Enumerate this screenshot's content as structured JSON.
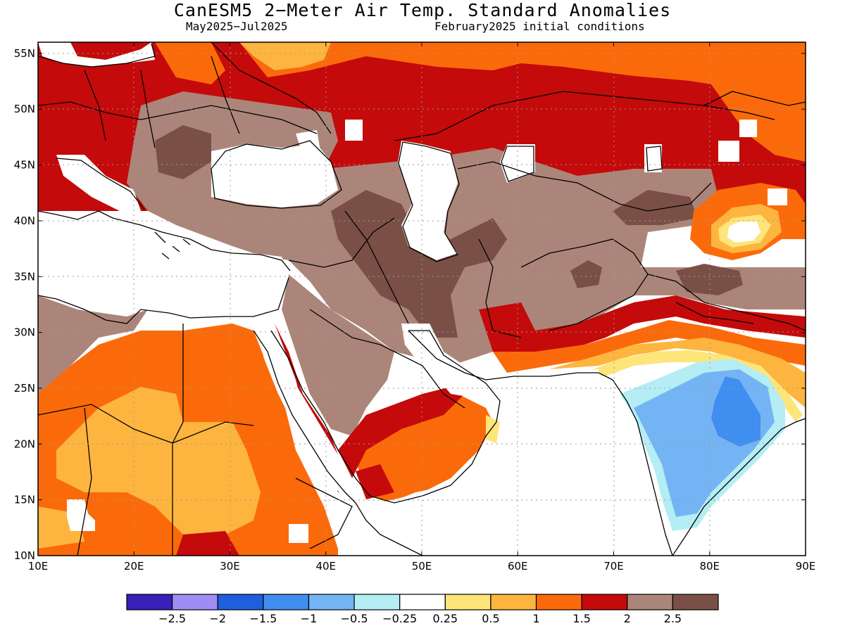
{
  "title": "CanESM5 2−Meter Air Temp. Standard Anomalies",
  "subtitle_left": "May2025−Jul2025",
  "subtitle_right": "February2025 initial conditions",
  "map": {
    "lon_range": [
      10,
      90
    ],
    "lat_range": [
      10,
      56
    ],
    "lat_ticks": [
      {
        "value": 10,
        "label": "10N"
      },
      {
        "value": 15,
        "label": "15N"
      },
      {
        "value": 20,
        "label": "20N"
      },
      {
        "value": 25,
        "label": "25N"
      },
      {
        "value": 30,
        "label": "30N"
      },
      {
        "value": 35,
        "label": "35N"
      },
      {
        "value": 40,
        "label": "40N"
      },
      {
        "value": 45,
        "label": "45N"
      },
      {
        "value": 50,
        "label": "50N"
      },
      {
        "value": 55,
        "label": "55N"
      }
    ],
    "lon_ticks": [
      {
        "value": 10,
        "label": "10E"
      },
      {
        "value": 20,
        "label": "20E"
      },
      {
        "value": 30,
        "label": "30E"
      },
      {
        "value": 40,
        "label": "40E"
      },
      {
        "value": 50,
        "label": "50E"
      },
      {
        "value": 60,
        "label": "60E"
      },
      {
        "value": 70,
        "label": "70E"
      },
      {
        "value": 80,
        "label": "80E"
      },
      {
        "value": 90,
        "label": "90E"
      }
    ]
  },
  "colorbar": {
    "colors": [
      "#3a1fb8",
      "#9f8cf5",
      "#1f5fdc",
      "#3f8ef0",
      "#74b4f4",
      "#b4eef4",
      "#ffffff",
      "#fde57a",
      "#fdb53f",
      "#fb6a0a",
      "#c40a0a",
      "#ac857a",
      "#7a5046"
    ],
    "labels": [
      "−2.5",
      "−2",
      "−1.5",
      "−1",
      "−0.5",
      "−0.25",
      "0.25",
      "0.5",
      "1",
      "1.5",
      "2",
      "2.5"
    ]
  }
}
